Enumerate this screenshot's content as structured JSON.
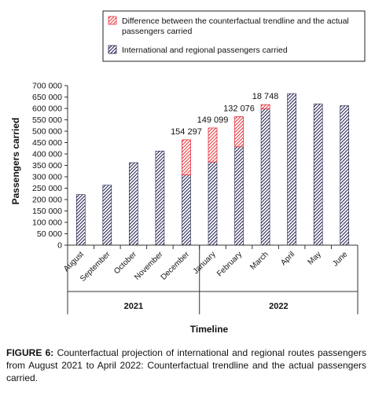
{
  "chart_data": {
    "type": "bar",
    "stacked": true,
    "categories": [
      "August",
      "September",
      "October",
      "November",
      "December",
      "January",
      "February",
      "March",
      "April",
      "May",
      "June"
    ],
    "year_groups": [
      {
        "label": "2021",
        "categories": [
          "August",
          "September",
          "October",
          "November",
          "December"
        ]
      },
      {
        "label": "2022",
        "categories": [
          "January",
          "February",
          "March",
          "April",
          "May",
          "June"
        ]
      }
    ],
    "series": [
      {
        "name": "International and regional passengers carried",
        "values": [
          222000,
          263000,
          362000,
          413000,
          308000,
          365000,
          432000,
          598000,
          665000,
          620000,
          612000
        ],
        "color": "#1a1a4a",
        "pattern": "hatch-dark"
      },
      {
        "name": "Difference between the counterfactual trendline and the actual passengers carried",
        "values": [
          0,
          0,
          0,
          0,
          154297,
          149099,
          132076,
          18748,
          0,
          0,
          0
        ],
        "color": "#e8303a",
        "pattern": "hatch-red"
      }
    ],
    "data_labels": [
      {
        "category": "December",
        "text": "154 297"
      },
      {
        "category": "January",
        "text": "149 099"
      },
      {
        "category": "February",
        "text": "132 076"
      },
      {
        "category": "March",
        "text": "18 748"
      }
    ],
    "y_ticks": [
      "0",
      "50 000",
      "100 000",
      "150 000",
      "200 000",
      "250 000",
      "300 000",
      "350 000",
      "400 000",
      "450 000",
      "500 000",
      "550 000",
      "600 000",
      "650 000",
      "700 000"
    ],
    "ylim": [
      0,
      700000
    ],
    "ylabel": "Passengers carried",
    "xlabel": "Timeline",
    "legend_position": "top-right"
  },
  "caption": {
    "figure_label": "FIGURE 6:",
    "text": "Counterfactual projection of international and regional routes passengers from August 2021 to April 2022: Counterfactual trendline and the actual passengers carried."
  }
}
